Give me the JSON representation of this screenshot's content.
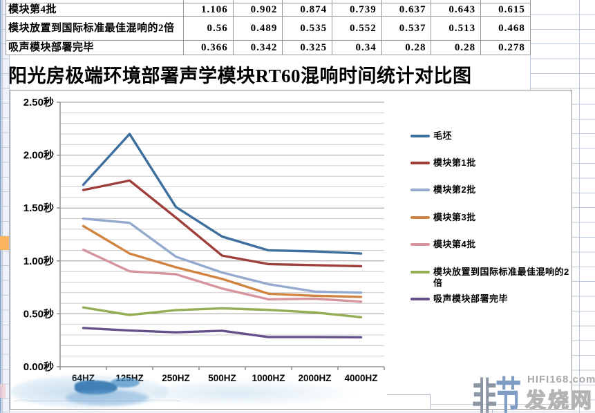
{
  "title": "阳光房极端环境部署声学模块RT60混响时间统计对比图",
  "table": {
    "rows": [
      {
        "label": "模块第4批",
        "values": [
          "1.106",
          "0.902",
          "0.874",
          "0.739",
          "0.637",
          "0.643",
          "0.615"
        ]
      },
      {
        "label": "模块放置到国际标准最佳混响的2倍",
        "values": [
          "0.56",
          "0.489",
          "0.535",
          "0.552",
          "0.537",
          "0.513",
          "0.468"
        ]
      },
      {
        "label": "吸声模块部署完毕",
        "values": [
          "0.366",
          "0.342",
          "0.325",
          "0.34",
          "0.28",
          "0.28",
          "0.278"
        ]
      }
    ]
  },
  "chart_data": {
    "type": "line",
    "title": "阳光房极端环境部署声学模块RT60混响时间统计对比图",
    "categories": [
      "64HZ",
      "125HZ",
      "250HZ",
      "500HZ",
      "1000HZ",
      "2000HZ",
      "4000HZ"
    ],
    "series": [
      {
        "name": "毛坯",
        "color": "#3e6e9e",
        "values": [
          1.72,
          2.2,
          1.51,
          1.23,
          1.1,
          1.09,
          1.07
        ]
      },
      {
        "name": "模块第1批",
        "color": "#9e3f3b",
        "values": [
          1.67,
          1.76,
          1.41,
          1.05,
          0.97,
          0.96,
          0.95
        ]
      },
      {
        "name": "模块第2批",
        "color": "#93a9cd",
        "values": [
          1.4,
          1.36,
          1.04,
          0.89,
          0.78,
          0.71,
          0.7
        ]
      },
      {
        "name": "模块第3批",
        "color": "#d08440",
        "values": [
          1.33,
          1.07,
          0.94,
          0.83,
          0.69,
          0.67,
          0.66
        ]
      },
      {
        "name": "模块第4批",
        "color": "#d6949e",
        "values": [
          1.106,
          0.902,
          0.874,
          0.739,
          0.637,
          0.643,
          0.615
        ]
      },
      {
        "name": "模块放置到国际标准最佳混响的2倍",
        "color": "#95ae56",
        "values": [
          0.56,
          0.489,
          0.535,
          0.552,
          0.537,
          0.513,
          0.468
        ]
      },
      {
        "name": "吸声模块部署完毕",
        "color": "#64508a",
        "values": [
          0.366,
          0.342,
          0.325,
          0.34,
          0.28,
          0.28,
          0.278
        ]
      }
    ],
    "ylim": [
      0,
      2.5
    ],
    "y_major_step": 0.5,
    "y_minor_step": 0.1,
    "y_tick_labels": [
      "0.00秒",
      "0.50秒",
      "1.00秒",
      "1.50秒",
      "2.00秒",
      "2.50秒"
    ],
    "xlabel": "",
    "ylabel": "",
    "grid": true,
    "legend_position": "right"
  },
  "watermarks": {
    "bottom_right": {
      "site": "HIFI168.com",
      "name": "发烧网",
      "logo_char_1": "非",
      "logo_char_2": "节"
    }
  }
}
